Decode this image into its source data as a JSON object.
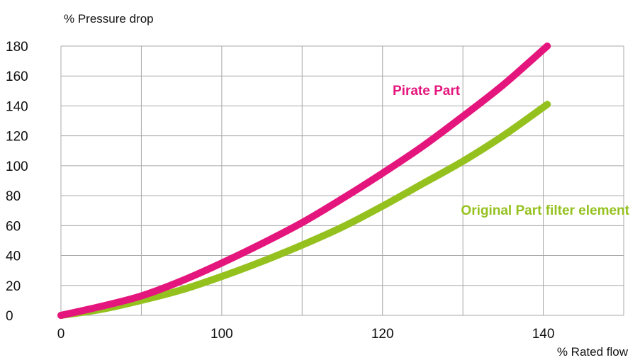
{
  "chart_data": {
    "type": "line",
    "title": "",
    "xlabel": "% Rated flow",
    "ylabel": "% Pressure drop",
    "xlim": [
      0,
      140
    ],
    "ylim": [
      0,
      180
    ],
    "x_ticks": [
      {
        "value": 0,
        "label": "0"
      },
      {
        "value": 40,
        "label": "100"
      },
      {
        "value": 80,
        "label": "120"
      },
      {
        "value": 120,
        "label": "140"
      }
    ],
    "x_grid": [
      0,
      20,
      40,
      60,
      80,
      100,
      120,
      140
    ],
    "y_ticks": [
      0,
      20,
      40,
      60,
      80,
      100,
      120,
      140,
      160,
      180
    ],
    "grid": true,
    "legend": "inline labels",
    "series": [
      {
        "name": "Pirate Part",
        "color": "#e4157c",
        "x": [
          0,
          10,
          20,
          30,
          40,
          50,
          60,
          70,
          80,
          90,
          100,
          110,
          121
        ],
        "y": [
          0,
          6,
          13,
          23,
          35,
          48,
          62,
          78,
          95,
          113,
          133,
          154,
          180
        ]
      },
      {
        "name": "Original Part filter element",
        "color": "#95c11f",
        "x": [
          0,
          10,
          20,
          30,
          40,
          50,
          60,
          70,
          80,
          90,
          100,
          110,
          121
        ],
        "y": [
          0,
          4,
          10,
          17,
          26,
          36,
          47,
          59,
          73,
          88,
          103,
          120,
          141
        ]
      }
    ]
  }
}
